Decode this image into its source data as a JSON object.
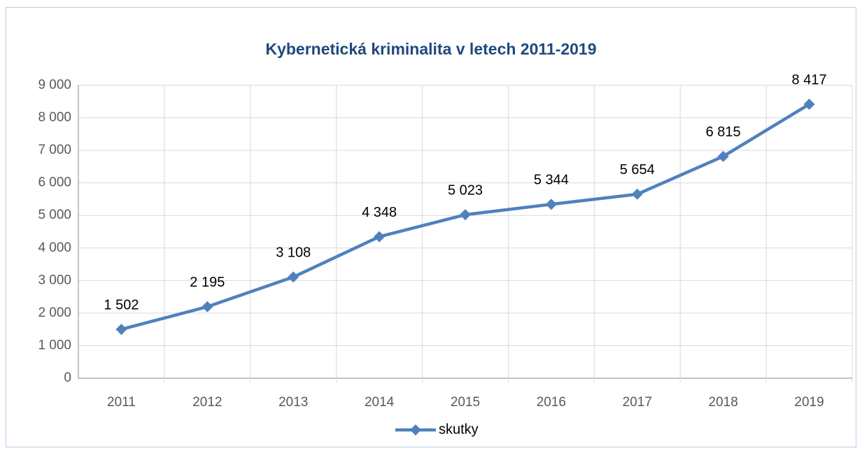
{
  "chart_data": {
    "type": "line",
    "title": "Kybernetická kriminalita v letech 2011-2019",
    "categories": [
      "2011",
      "2012",
      "2013",
      "2014",
      "2015",
      "2016",
      "2017",
      "2018",
      "2019"
    ],
    "series": [
      {
        "name": "skutky",
        "color": "#4f81bd",
        "values": [
          1502,
          2195,
          3108,
          4348,
          5023,
          5344,
          5654,
          6815,
          8417
        ],
        "value_labels": [
          "1 502",
          "2 195",
          "3 108",
          "4 348",
          "5 023",
          "5 344",
          "5 654",
          "6 815",
          "8 417"
        ]
      }
    ],
    "ylim": [
      0,
      9000
    ],
    "yticks": [
      0,
      {
        "value": 1000,
        "label": "1 000"
      },
      {
        "value": 2000,
        "label": "2 000"
      },
      {
        "value": 3000,
        "label": "3 000"
      },
      {
        "value": 4000,
        "label": "4 000"
      },
      {
        "value": 5000,
        "label": "5 000"
      },
      {
        "value": 6000,
        "label": "6 000"
      },
      {
        "value": 7000,
        "label": "7 000"
      },
      {
        "value": 8000,
        "label": "8 000"
      },
      {
        "value": 9000,
        "label": "9 000"
      }
    ],
    "grid": true,
    "legend": "bottom"
  }
}
